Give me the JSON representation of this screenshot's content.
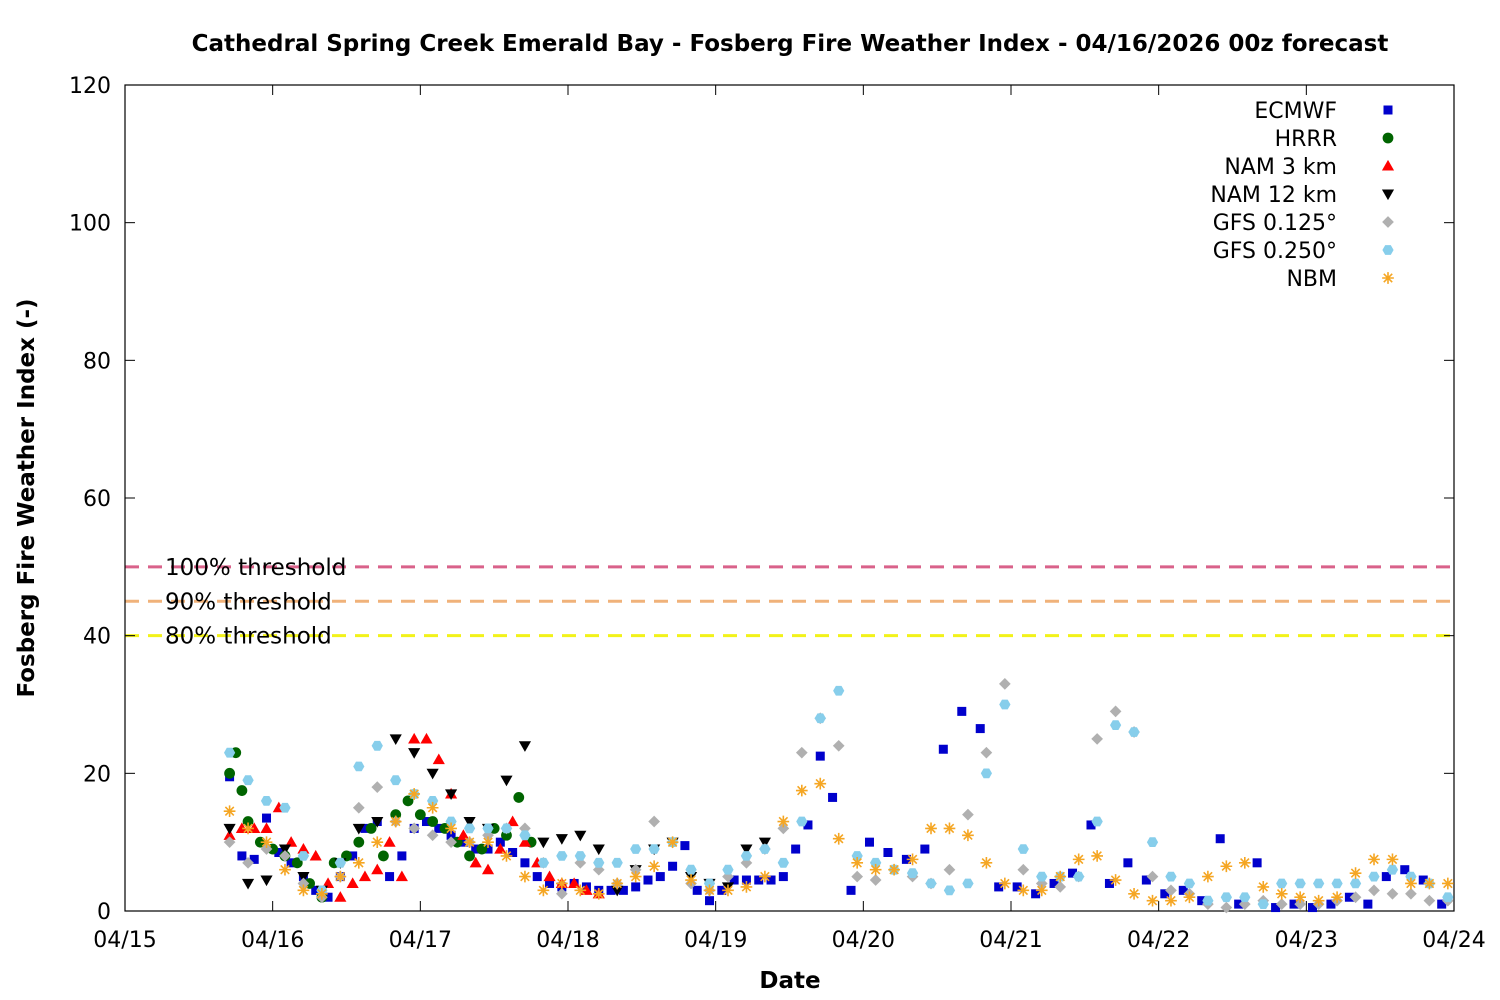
{
  "chart_data": {
    "type": "scatter",
    "title": "Cathedral Spring Creek Emerald Bay - Fosberg Fire Weather Index - 04/16/2026 00z forecast",
    "xlabel": "Date",
    "ylabel": "Fosberg Fire Weather Index (-)",
    "xlim": [
      "04/15",
      "04/24"
    ],
    "ylim": [
      0,
      120
    ],
    "x_ticks": [
      "04/15",
      "04/16",
      "04/17",
      "04/18",
      "04/19",
      "04/20",
      "04/21",
      "04/22",
      "04/23",
      "04/24"
    ],
    "y_ticks": [
      0,
      20,
      40,
      60,
      80,
      100,
      120
    ],
    "grid": false,
    "legend_position": "top-right",
    "thresholds": [
      {
        "label": "100% threshold",
        "value": 50,
        "color": "#d9628a"
      },
      {
        "label": "90% threshold",
        "value": 45,
        "color": "#f0b27a"
      },
      {
        "label": "80% threshold",
        "value": 40,
        "color": "#f2f21a"
      }
    ],
    "series": [
      {
        "name": "ECMWF",
        "marker": "square",
        "color": "#0000cc",
        "x": [
          "04/15 17:00",
          "04/15 19:00",
          "04/15 21:00",
          "04/15 23:00",
          "04/16 01:00",
          "04/16 03:00",
          "04/16 05:00",
          "04/16 07:00",
          "04/16 09:00",
          "04/16 11:00",
          "04/16 13:00",
          "04/16 15:00",
          "04/16 17:00",
          "04/16 19:00",
          "04/16 21:00",
          "04/16 23:00",
          "04/17 01:00",
          "04/17 03:00",
          "04/17 05:00",
          "04/17 07:00",
          "04/17 09:00",
          "04/17 11:00",
          "04/17 13:00",
          "04/17 15:00",
          "04/17 17:00",
          "04/17 19:00",
          "04/17 21:00",
          "04/17 23:00",
          "04/18 01:00",
          "04/18 03:00",
          "04/18 05:00",
          "04/18 07:00",
          "04/18 09:00",
          "04/18 11:00",
          "04/18 13:00",
          "04/18 15:00",
          "04/18 17:00",
          "04/18 19:00",
          "04/18 21:00",
          "04/18 23:00",
          "04/19 01:00",
          "04/19 03:00",
          "04/19 05:00",
          "04/19 07:00",
          "04/19 09:00",
          "04/19 11:00",
          "04/19 13:00",
          "04/19 15:00",
          "04/19 17:00",
          "04/19 19:00",
          "04/19 22:00",
          "04/20 01:00",
          "04/20 04:00",
          "04/20 07:00",
          "04/20 10:00",
          "04/20 13:00",
          "04/20 16:00",
          "04/20 19:00",
          "04/20 22:00",
          "04/21 01:00",
          "04/21 04:00",
          "04/21 07:00",
          "04/21 10:00",
          "04/21 13:00",
          "04/21 16:00",
          "04/21 19:00",
          "04/21 22:00",
          "04/22 01:00",
          "04/22 04:00",
          "04/22 07:00",
          "04/22 10:00",
          "04/22 13:00",
          "04/22 16:00",
          "04/22 19:00",
          "04/22 22:00",
          "04/23 01:00",
          "04/23 04:00",
          "04/23 07:00",
          "04/23 10:00",
          "04/23 13:00",
          "04/23 16:00",
          "04/23 19:00",
          "04/23 22:00"
        ],
        "y": [
          19.5,
          8,
          7.5,
          13.5,
          8.5,
          7,
          5,
          3,
          2,
          5,
          8,
          12,
          13,
          5,
          8,
          12,
          13,
          12,
          11,
          10,
          9,
          9,
          10,
          8.5,
          7,
          5,
          4,
          3.5,
          4,
          3.5,
          3,
          3,
          3,
          3.5,
          4.5,
          5,
          6.5,
          9.5,
          3,
          1.5,
          3,
          4.5,
          4.5,
          4.5,
          4.5,
          5,
          9,
          12.5,
          22.5,
          16.5,
          3,
          10,
          8.5,
          7.5,
          9,
          23.5,
          29,
          26.5,
          3.5,
          3.5,
          2.5,
          4,
          5.5,
          12.5,
          4,
          7,
          4.5,
          2.5,
          3,
          1.5,
          10.5,
          1,
          7,
          0.5,
          1,
          0.5,
          1,
          2,
          1,
          5,
          6,
          4.5,
          1
        ]
      },
      {
        "name": "HRRR",
        "marker": "circle",
        "color": "#006400",
        "x": [
          "04/15 17:00",
          "04/15 18:00",
          "04/15 19:00",
          "04/15 20:00",
          "04/15 22:00",
          "04/16 00:00",
          "04/16 02:00",
          "04/16 04:00",
          "04/16 06:00",
          "04/16 08:00",
          "04/16 10:00",
          "04/16 12:00",
          "04/16 14:00",
          "04/16 16:00",
          "04/16 18:00",
          "04/16 20:00",
          "04/16 22:00",
          "04/17 00:00",
          "04/17 02:00",
          "04/17 04:00",
          "04/17 06:00",
          "04/17 08:00",
          "04/17 10:00",
          "04/17 12:00",
          "04/17 14:00",
          "04/17 16:00",
          "04/17 18:00"
        ],
        "y": [
          20,
          23,
          17.5,
          13,
          10,
          9,
          8,
          7,
          4,
          2,
          7,
          8,
          10,
          12,
          8,
          14,
          16,
          14,
          13,
          12,
          10,
          8,
          9,
          12,
          11,
          16.5,
          10
        ]
      },
      {
        "name": "NAM 3 km",
        "marker": "triangle-up",
        "color": "#ff0000",
        "x": [
          "04/15 17:00",
          "04/15 19:00",
          "04/15 21:00",
          "04/15 23:00",
          "04/16 01:00",
          "04/16 03:00",
          "04/16 05:00",
          "04/16 07:00",
          "04/16 09:00",
          "04/16 11:00",
          "04/16 13:00",
          "04/16 15:00",
          "04/16 17:00",
          "04/16 19:00",
          "04/16 21:00",
          "04/16 23:00",
          "04/17 01:00",
          "04/17 03:00",
          "04/17 05:00",
          "04/17 07:00",
          "04/17 09:00",
          "04/17 11:00",
          "04/17 13:00",
          "04/17 15:00",
          "04/17 17:00",
          "04/17 19:00",
          "04/17 21:00",
          "04/17 23:00",
          "04/18 01:00",
          "04/18 03:00",
          "04/18 05:00"
        ],
        "y": [
          11,
          12,
          12,
          12,
          15,
          10,
          9,
          8,
          4,
          2,
          4,
          5,
          6,
          10,
          5,
          25,
          25,
          22,
          17,
          11,
          7,
          6,
          9,
          13,
          10,
          7,
          5,
          4,
          4,
          3,
          2.5
        ]
      },
      {
        "name": "NAM 12 km",
        "marker": "triangle-down",
        "color": "#000000",
        "x": [
          "04/15 17:00",
          "04/15 20:00",
          "04/15 23:00",
          "04/16 02:00",
          "04/16 05:00",
          "04/16 08:00",
          "04/16 11:00",
          "04/16 14:00",
          "04/16 17:00",
          "04/16 20:00",
          "04/16 23:00",
          "04/17 02:00",
          "04/17 05:00",
          "04/17 08:00",
          "04/17 11:00",
          "04/17 14:00",
          "04/17 17:00",
          "04/17 20:00",
          "04/17 23:00",
          "04/18 02:00",
          "04/18 05:00",
          "04/18 08:00",
          "04/18 11:00",
          "04/18 14:00",
          "04/18 17:00",
          "04/18 20:00",
          "04/18 23:00",
          "04/19 02:00",
          "04/19 05:00",
          "04/19 08:00"
        ],
        "y": [
          12,
          4,
          4.5,
          9,
          5,
          3,
          7,
          12,
          13,
          25,
          23,
          20,
          17,
          13,
          12,
          19,
          24,
          10,
          10.5,
          11,
          9,
          3,
          6,
          9,
          10,
          5,
          4,
          3.5,
          9,
          10
        ]
      },
      {
        "name": "GFS 0.125°",
        "marker": "diamond",
        "color": "#b0b0b0",
        "x": [
          "04/15 17:00",
          "04/15 20:00",
          "04/15 23:00",
          "04/16 02:00",
          "04/16 05:00",
          "04/16 08:00",
          "04/16 11:00",
          "04/16 14:00",
          "04/16 17:00",
          "04/16 20:00",
          "04/16 23:00",
          "04/17 02:00",
          "04/17 05:00",
          "04/17 08:00",
          "04/17 11:00",
          "04/17 14:00",
          "04/17 17:00",
          "04/17 20:00",
          "04/17 23:00",
          "04/18 02:00",
          "04/18 05:00",
          "04/18 08:00",
          "04/18 11:00",
          "04/18 14:00",
          "04/18 17:00",
          "04/18 20:00",
          "04/18 23:00",
          "04/19 02:00",
          "04/19 05:00",
          "04/19 08:00",
          "04/19 11:00",
          "04/19 14:00",
          "04/19 17:00",
          "04/19 20:00",
          "04/19 23:00",
          "04/20 02:00",
          "04/20 05:00",
          "04/20 08:00",
          "04/20 11:00",
          "04/20 14:00",
          "04/20 17:00",
          "04/20 20:00",
          "04/20 23:00",
          "04/21 02:00",
          "04/21 05:00",
          "04/21 08:00",
          "04/21 11:00",
          "04/21 14:00",
          "04/21 17:00",
          "04/21 20:00",
          "04/21 23:00",
          "04/22 02:00",
          "04/22 05:00",
          "04/22 08:00",
          "04/22 11:00",
          "04/22 14:00",
          "04/22 17:00",
          "04/22 20:00",
          "04/22 23:00",
          "04/23 02:00",
          "04/23 05:00",
          "04/23 08:00",
          "04/23 11:00",
          "04/23 14:00",
          "04/23 17:00",
          "04/23 20:00",
          "04/23 23:00"
        ],
        "y": [
          10,
          7,
          9,
          8,
          4,
          2,
          5,
          15,
          18,
          13,
          12,
          11,
          10,
          10,
          11,
          12,
          12,
          7,
          2.5,
          7,
          6,
          4,
          6,
          13,
          10,
          4,
          3,
          5,
          7,
          9,
          12,
          23,
          28,
          24,
          5,
          4.5,
          6,
          5,
          4,
          6,
          14,
          23,
          33,
          6,
          4,
          3.5,
          5,
          25,
          29,
          26,
          5,
          3,
          2.5,
          1,
          0.5,
          1,
          1.5,
          1,
          1,
          1,
          1.5,
          2,
          3,
          2.5,
          2.5,
          1.5,
          1.5
        ]
      },
      {
        "name": "GFS 0.250°",
        "marker": "hexagon",
        "color": "#87ceeb",
        "x": [
          "04/15 17:00",
          "04/15 20:00",
          "04/15 23:00",
          "04/16 02:00",
          "04/16 05:00",
          "04/16 08:00",
          "04/16 11:00",
          "04/16 14:00",
          "04/16 17:00",
          "04/16 20:00",
          "04/16 23:00",
          "04/17 02:00",
          "04/17 05:00",
          "04/17 08:00",
          "04/17 11:00",
          "04/17 14:00",
          "04/17 17:00",
          "04/17 20:00",
          "04/17 23:00",
          "04/18 02:00",
          "04/18 05:00",
          "04/18 08:00",
          "04/18 11:00",
          "04/18 14:00",
          "04/18 17:00",
          "04/18 20:00",
          "04/18 23:00",
          "04/19 02:00",
          "04/19 05:00",
          "04/19 08:00",
          "04/19 11:00",
          "04/19 14:00",
          "04/19 17:00",
          "04/19 20:00",
          "04/19 23:00",
          "04/20 02:00",
          "04/20 05:00",
          "04/20 08:00",
          "04/20 11:00",
          "04/20 14:00",
          "04/20 17:00",
          "04/20 20:00",
          "04/20 23:00",
          "04/21 02:00",
          "04/21 05:00",
          "04/21 08:00",
          "04/21 11:00",
          "04/21 14:00",
          "04/21 17:00",
          "04/21 20:00",
          "04/21 23:00",
          "04/22 02:00",
          "04/22 05:00",
          "04/22 08:00",
          "04/22 11:00",
          "04/22 14:00",
          "04/22 17:00",
          "04/22 20:00",
          "04/22 23:00",
          "04/23 02:00",
          "04/23 05:00",
          "04/23 08:00",
          "04/23 11:00",
          "04/23 14:00",
          "04/23 17:00",
          "04/23 20:00",
          "04/23 23:00"
        ],
        "y": [
          23,
          19,
          16,
          15,
          8,
          3,
          7,
          21,
          24,
          19,
          17,
          16,
          13,
          12,
          12,
          12,
          11,
          7,
          8,
          8,
          7,
          7,
          9,
          9,
          10,
          6,
          4,
          6,
          8,
          9,
          7,
          13,
          28,
          32,
          8,
          7,
          6,
          5.5,
          4,
          3,
          4,
          20,
          30,
          9,
          5,
          5,
          5,
          13,
          27,
          26,
          10,
          5,
          4,
          1.5,
          2,
          2,
          1,
          4,
          4,
          4,
          4,
          4,
          5,
          6,
          5,
          4,
          2
        ]
      },
      {
        "name": "NBM",
        "marker": "star",
        "color": "#f5a623",
        "x": [
          "04/15 17:00",
          "04/15 20:00",
          "04/15 23:00",
          "04/16 02:00",
          "04/16 05:00",
          "04/16 08:00",
          "04/16 11:00",
          "04/16 14:00",
          "04/16 17:00",
          "04/16 20:00",
          "04/16 23:00",
          "04/17 02:00",
          "04/17 05:00",
          "04/17 08:00",
          "04/17 11:00",
          "04/17 14:00",
          "04/17 17:00",
          "04/17 20:00",
          "04/17 23:00",
          "04/18 02:00",
          "04/18 05:00",
          "04/18 08:00",
          "04/18 11:00",
          "04/18 14:00",
          "04/18 17:00",
          "04/18 20:00",
          "04/18 23:00",
          "04/19 02:00",
          "04/19 05:00",
          "04/19 08:00",
          "04/19 11:00",
          "04/19 14:00",
          "04/19 17:00",
          "04/19 20:00",
          "04/19 23:00",
          "04/20 02:00",
          "04/20 05:00",
          "04/20 08:00",
          "04/20 11:00",
          "04/20 14:00",
          "04/20 17:00",
          "04/20 20:00",
          "04/20 23:00",
          "04/21 02:00",
          "04/21 05:00",
          "04/21 08:00",
          "04/21 11:00",
          "04/21 14:00",
          "04/21 17:00",
          "04/21 20:00",
          "04/21 23:00",
          "04/22 02:00",
          "04/22 05:00",
          "04/22 08:00",
          "04/22 11:00",
          "04/22 14:00",
          "04/22 17:00",
          "04/22 20:00",
          "04/22 23:00",
          "04/23 02:00",
          "04/23 05:00",
          "04/23 08:00",
          "04/23 11:00",
          "04/23 14:00",
          "04/23 17:00",
          "04/23 20:00",
          "04/23 23:00"
        ],
        "y": [
          14.5,
          12,
          10,
          6,
          3,
          2.5,
          5,
          7,
          10,
          13,
          17,
          15,
          12,
          10,
          10,
          8,
          5,
          3,
          4,
          3,
          2.5,
          4,
          5,
          6.5,
          10,
          4.5,
          3,
          3,
          3.5,
          5,
          13,
          17.5,
          18.5,
          10.5,
          7,
          6,
          6,
          7.5,
          12,
          12,
          11,
          7,
          4,
          3,
          3,
          5,
          7.5,
          8,
          4.5,
          2.5,
          1.5,
          1.5,
          2,
          5,
          6.5,
          7,
          3.5,
          2.5,
          2,
          1.5,
          2,
          5.5,
          7.5,
          7.5,
          4,
          4,
          4
        ]
      }
    ]
  }
}
